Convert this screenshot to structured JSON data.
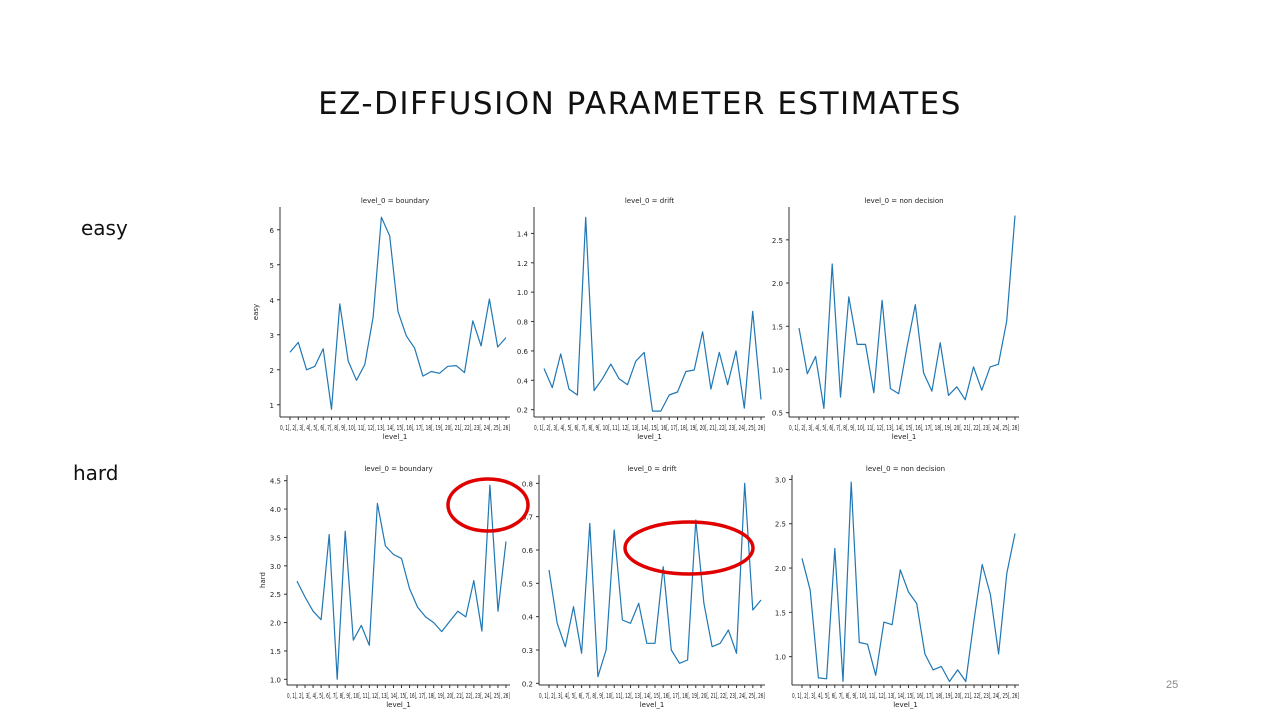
{
  "slide": {
    "title": "EZ-DIFFUSION PARAMETER ESTIMATES",
    "page_number": "25",
    "row_labels": [
      "easy",
      "hard"
    ]
  },
  "colors": {
    "line": "#1f77b4",
    "highlight": "#e00000",
    "axis": "#333333"
  },
  "chart_data": [
    {
      "type": "line",
      "title": "level_0 = boundary",
      "xlabel": "level_1",
      "ylabel": "easy",
      "ylim": [
        0.65,
        6.65
      ],
      "yticks": [
        1,
        2,
        3,
        4,
        5,
        6
      ],
      "x": [
        0,
        1,
        2,
        3,
        4,
        5,
        6,
        7,
        8,
        9,
        10,
        11,
        12,
        13,
        14,
        15,
        16,
        17,
        18,
        19,
        20,
        21,
        22,
        23,
        24,
        25,
        26
      ],
      "values": [
        2.5,
        2.78,
        2.0,
        2.1,
        2.6,
        0.87,
        3.88,
        2.25,
        1.7,
        2.15,
        3.5,
        6.36,
        5.82,
        3.66,
        2.97,
        2.62,
        1.82,
        1.95,
        1.9,
        2.1,
        2.12,
        1.92,
        3.4,
        2.68,
        4.02,
        2.65,
        2.92
      ]
    },
    {
      "type": "line",
      "title": "level_0 = drift",
      "xlabel": "level_1",
      "ylabel": "",
      "ylim": [
        0.15,
        1.58
      ],
      "yticks": [
        0.2,
        0.4,
        0.6,
        0.8,
        1.0,
        1.2,
        1.4
      ],
      "x": [
        0,
        1,
        2,
        3,
        4,
        5,
        6,
        7,
        8,
        9,
        10,
        11,
        12,
        13,
        14,
        15,
        16,
        17,
        18,
        19,
        20,
        21,
        22,
        23,
        24,
        25,
        26
      ],
      "values": [
        0.48,
        0.35,
        0.58,
        0.34,
        0.3,
        1.51,
        0.33,
        0.41,
        0.51,
        0.41,
        0.37,
        0.53,
        0.59,
        0.19,
        0.19,
        0.3,
        0.32,
        0.46,
        0.47,
        0.73,
        0.34,
        0.59,
        0.37,
        0.6,
        0.21,
        0.87,
        0.27
      ]
    },
    {
      "type": "line",
      "title": "level_0 = non decision",
      "xlabel": "level_1",
      "ylabel": "",
      "ylim": [
        0.45,
        2.88
      ],
      "yticks": [
        0.5,
        1.0,
        1.5,
        2.0,
        2.5
      ],
      "x": [
        0,
        1,
        2,
        3,
        4,
        5,
        6,
        7,
        8,
        9,
        10,
        11,
        12,
        13,
        14,
        15,
        16,
        17,
        18,
        19,
        20,
        21,
        22,
        23,
        24,
        25,
        26
      ],
      "values": [
        1.48,
        0.95,
        1.15,
        0.55,
        2.22,
        0.68,
        1.84,
        1.29,
        1.29,
        0.73,
        1.8,
        0.78,
        0.72,
        1.26,
        1.75,
        0.96,
        0.75,
        1.31,
        0.7,
        0.8,
        0.65,
        1.03,
        0.76,
        1.03,
        1.06,
        1.56,
        2.78
      ]
    },
    {
      "type": "line",
      "title": "level_0 = boundary",
      "xlabel": "level_1",
      "ylabel": "hard",
      "ylim": [
        0.9,
        4.6
      ],
      "yticks": [
        1.0,
        1.5,
        2.0,
        2.5,
        3.0,
        3.5,
        4.0,
        4.5
      ],
      "x": [
        0,
        1,
        2,
        3,
        4,
        5,
        6,
        7,
        8,
        9,
        10,
        11,
        12,
        13,
        14,
        15,
        16,
        17,
        18,
        19,
        20,
        21,
        22,
        23,
        24,
        25,
        26
      ],
      "values": [
        2.73,
        2.45,
        2.2,
        2.05,
        3.55,
        1.0,
        3.61,
        1.69,
        1.95,
        1.6,
        4.1,
        3.35,
        3.2,
        3.13,
        2.6,
        2.27,
        2.1,
        2.0,
        1.84,
        2.02,
        2.2,
        2.1,
        2.74,
        1.85,
        4.42,
        2.2,
        3.43
      ]
    },
    {
      "type": "line",
      "title": "level_0 = drift",
      "xlabel": "level_1",
      "ylabel": "",
      "ylim": [
        0.195,
        0.825
      ],
      "yticks": [
        0.2,
        0.3,
        0.4,
        0.5,
        0.6,
        0.7,
        0.8
      ],
      "x": [
        0,
        1,
        2,
        3,
        4,
        5,
        6,
        7,
        8,
        9,
        10,
        11,
        12,
        13,
        14,
        15,
        16,
        17,
        18,
        19,
        20,
        21,
        22,
        23,
        24,
        25,
        26
      ],
      "values": [
        0.54,
        0.38,
        0.31,
        0.43,
        0.29,
        0.68,
        0.22,
        0.3,
        0.66,
        0.39,
        0.38,
        0.44,
        0.32,
        0.32,
        0.55,
        0.3,
        0.26,
        0.27,
        0.69,
        0.44,
        0.31,
        0.32,
        0.36,
        0.29,
        0.8,
        0.42,
        0.45
      ]
    },
    {
      "type": "line",
      "title": "level_0 = non decision",
      "xlabel": "level_1",
      "ylabel": "",
      "ylim": [
        0.68,
        3.05
      ],
      "yticks": [
        1.0,
        1.5,
        2.0,
        2.5,
        3.0
      ],
      "x": [
        0,
        1,
        2,
        3,
        4,
        5,
        6,
        7,
        8,
        9,
        10,
        11,
        12,
        13,
        14,
        15,
        16,
        17,
        18,
        19,
        20,
        21,
        22,
        23,
        24,
        25,
        26
      ],
      "values": [
        2.11,
        1.75,
        0.76,
        0.75,
        2.22,
        0.72,
        2.97,
        1.16,
        1.14,
        0.79,
        1.39,
        1.36,
        1.98,
        1.73,
        1.6,
        1.03,
        0.85,
        0.89,
        0.72,
        0.85,
        0.72,
        1.41,
        2.04,
        1.7,
        1.03,
        1.94,
        2.39
      ]
    }
  ],
  "xtick_label_text": "0, 1[, 2[, 3[, 4[, 5[, 6[, 7[, 8[, 9[, 10[, 11[, 12[, 13[, 14[, 15[, 16[, 17[, 18[, 19[, 20[, 21[, 22[, 23[, 24[, 25[, 26]"
}
